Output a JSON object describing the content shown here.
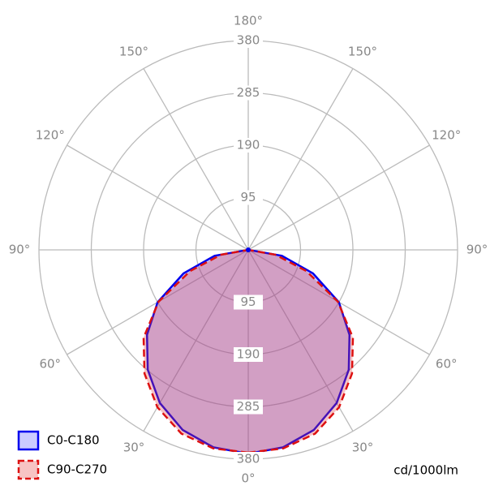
{
  "chart_data": {
    "type": "polar",
    "unit_label": "cd/1000lm",
    "angles": [
      0,
      10,
      20,
      30,
      40,
      50,
      60,
      70,
      80,
      90,
      100,
      110,
      120,
      130,
      140,
      150,
      160,
      170,
      180
    ],
    "rlim": [
      0,
      380
    ],
    "rticks": [
      95,
      190,
      285,
      380
    ],
    "angle_ticks": [
      {
        "value": 0,
        "label": "0°"
      },
      {
        "value": 30,
        "label": "30°"
      },
      {
        "value": 60,
        "label": "60°"
      },
      {
        "value": 90,
        "label": "90°"
      },
      {
        "value": 120,
        "label": "120°"
      },
      {
        "value": 150,
        "label": "150°"
      },
      {
        "value": 180,
        "label": "180°"
      }
    ],
    "series": [
      {
        "name": "C0-C180",
        "color": "#0000ee",
        "fill": "rgba(70,70,255,0.28)",
        "dash": false,
        "values": [
          370,
          364,
          348,
          321,
          284,
          240,
          190,
          125,
          62,
          0,
          0,
          0,
          0,
          0,
          0,
          0,
          0,
          0,
          0
        ]
      },
      {
        "name": "C90-C270",
        "color": "#dd1111",
        "fill": "rgba(230,60,60,0.3)",
        "dash": true,
        "values": [
          368,
          366,
          355,
          330,
          293,
          248,
          188,
          112,
          50,
          0,
          0,
          0,
          0,
          0,
          0,
          0,
          0,
          0,
          0
        ]
      }
    ]
  }
}
